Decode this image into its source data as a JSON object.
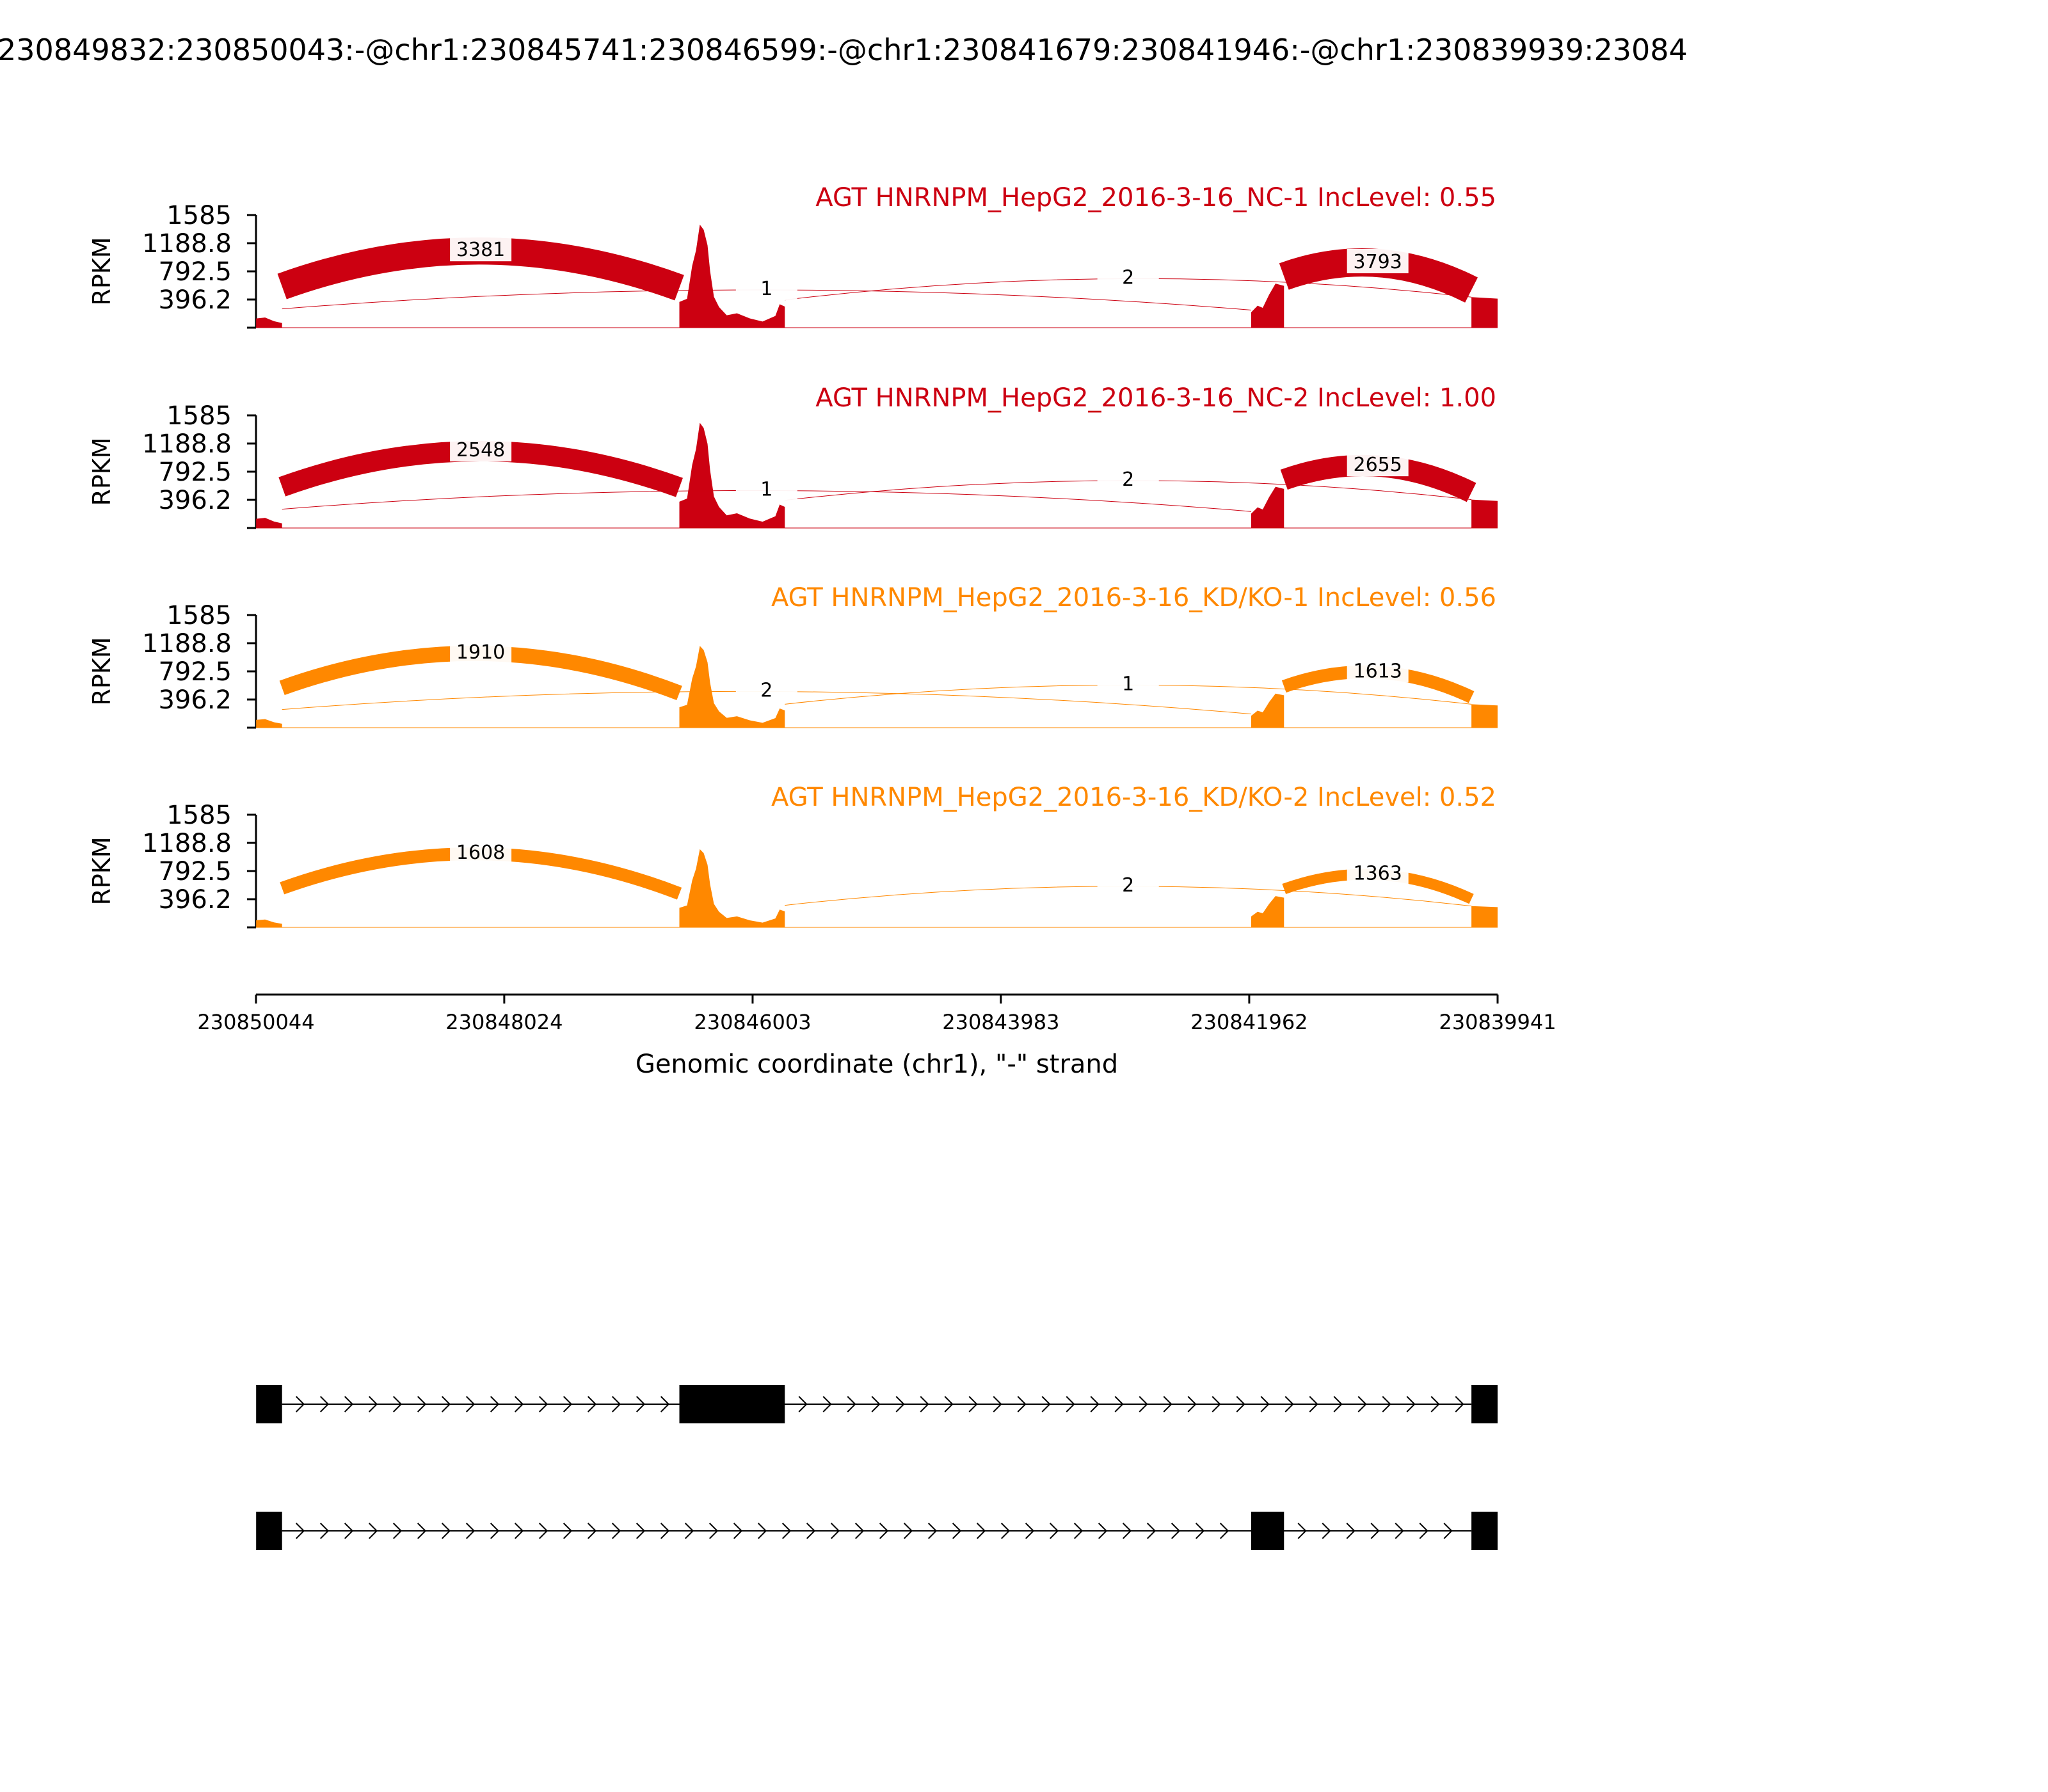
{
  "title": "230849832:230850043:-@chr1:230845741:230846599:-@chr1:230841679:230841946:-@chr1:230839939:23084",
  "chart_data": {
    "type": "sashimi",
    "strand": "-",
    "xlabel": "Genomic coordinate (chr1), \"-\" strand",
    "ylabel": "RPKM",
    "xlim": [
      230850044,
      230839941
    ],
    "x_ticks": [
      "230850044",
      "230848024",
      "230846003",
      "230843983",
      "230841962",
      "230839941"
    ],
    "x_tick_values": [
      230850044,
      230848024,
      230846003,
      230843983,
      230841962,
      230839941
    ],
    "ylim": [
      0,
      1585
    ],
    "y_ticks": [
      "1585",
      "1188.8",
      "792.5",
      "396.2"
    ],
    "y_tick_values": [
      1585,
      1188.8,
      792.5,
      396.2
    ],
    "exons": [
      {
        "start": 230850043,
        "end": 230849832
      },
      {
        "start": 230846599,
        "end": 230845741
      },
      {
        "start": 230841946,
        "end": 230841679
      },
      {
        "start": 230840154,
        "end": 230839941
      }
    ],
    "tracks": [
      {
        "title": "AGT HNRNPM_HepG2_2016-3-16_NC-1 IncLevel: 0.55",
        "color": "#cc0011",
        "coverage_peaks": [
          130,
          0,
          1450,
          330,
          0,
          620,
          900,
          430
        ],
        "junctions": [
          {
            "from_exon": 0,
            "to_exon": 1,
            "count": "3381",
            "side": "top"
          },
          {
            "from_exon": 1,
            "to_exon": 3,
            "count": "2",
            "side": "top"
          },
          {
            "from_exon": 0,
            "to_exon": 2,
            "count": "1",
            "side": "top"
          },
          {
            "from_exon": 2,
            "to_exon": 3,
            "count": "3793",
            "side": "top"
          }
        ]
      },
      {
        "title": "AGT HNRNPM_HepG2_2016-3-16_NC-2 IncLevel: 1.00",
        "color": "#cc0011",
        "coverage_peaks": [
          130,
          0,
          1480,
          330,
          0,
          580,
          880,
          400
        ],
        "junctions": [
          {
            "from_exon": 0,
            "to_exon": 1,
            "count": "2548",
            "side": "top"
          },
          {
            "from_exon": 1,
            "to_exon": 3,
            "count": "2",
            "side": "top"
          },
          {
            "from_exon": 0,
            "to_exon": 2,
            "count": "1",
            "side": "top"
          },
          {
            "from_exon": 2,
            "to_exon": 3,
            "count": "2655",
            "side": "top"
          }
        ]
      },
      {
        "title": "AGT HNRNPM_HepG2_2016-3-16_KD/KO-1 IncLevel: 0.56",
        "color": "#ff8800",
        "coverage_peaks": [
          110,
          0,
          1150,
          270,
          0,
          480,
          700,
          330
        ],
        "junctions": [
          {
            "from_exon": 0,
            "to_exon": 1,
            "count": "1910",
            "side": "top"
          },
          {
            "from_exon": 1,
            "to_exon": 3,
            "count": "1",
            "side": "top"
          },
          {
            "from_exon": 0,
            "to_exon": 2,
            "count": "2",
            "side": "top"
          },
          {
            "from_exon": 2,
            "to_exon": 3,
            "count": "1613",
            "side": "top"
          }
        ]
      },
      {
        "title": "AGT HNRNPM_HepG2_2016-3-16_KD/KO-2 IncLevel: 0.52",
        "color": "#ff8800",
        "coverage_peaks": [
          100,
          0,
          1100,
          250,
          0,
          440,
          650,
          300
        ],
        "junctions": [
          {
            "from_exon": 0,
            "to_exon": 1,
            "count": "1608",
            "side": "top"
          },
          {
            "from_exon": 1,
            "to_exon": 3,
            "count": "2",
            "side": "top"
          },
          {
            "from_exon": 2,
            "to_exon": 3,
            "count": "1363",
            "side": "top"
          }
        ]
      }
    ],
    "isoforms": [
      {
        "exons": [
          0,
          1,
          3
        ]
      },
      {
        "exons": [
          0,
          2,
          3
        ]
      }
    ]
  }
}
